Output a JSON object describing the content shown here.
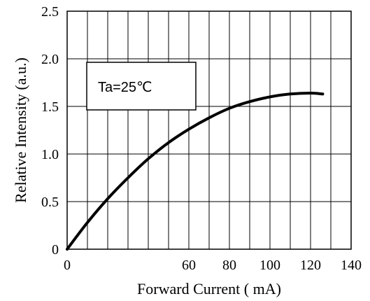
{
  "chart_data": {
    "type": "line",
    "xlabel": "Forward Current ( mA)",
    "ylabel": "Relative Intensity  (a.u.)",
    "xlim": [
      0,
      140
    ],
    "ylim": [
      0,
      2.5
    ],
    "x_ticks": [
      0,
      60,
      80,
      100,
      120,
      140
    ],
    "x_tick_labels": [
      "0",
      "60",
      "80",
      "100",
      "120",
      "140"
    ],
    "x_gridlines": [
      10,
      20,
      30,
      40,
      50,
      60,
      70,
      80,
      90,
      100,
      110,
      120,
      130
    ],
    "y_ticks": [
      0,
      0.5,
      1.0,
      1.5,
      2.0,
      2.5
    ],
    "y_tick_labels": [
      "0",
      "0.5",
      "1.0",
      "1.5",
      "2.0",
      "2.5"
    ],
    "grid": true,
    "annotation": "Ta=25℃",
    "series": [
      {
        "x": [
          0,
          10,
          20,
          30,
          40,
          50,
          60,
          70,
          80,
          90,
          100,
          110,
          120,
          126
        ],
        "y": [
          0,
          0.28,
          0.53,
          0.75,
          0.95,
          1.12,
          1.26,
          1.38,
          1.48,
          1.55,
          1.6,
          1.63,
          1.64,
          1.63
        ]
      }
    ]
  }
}
